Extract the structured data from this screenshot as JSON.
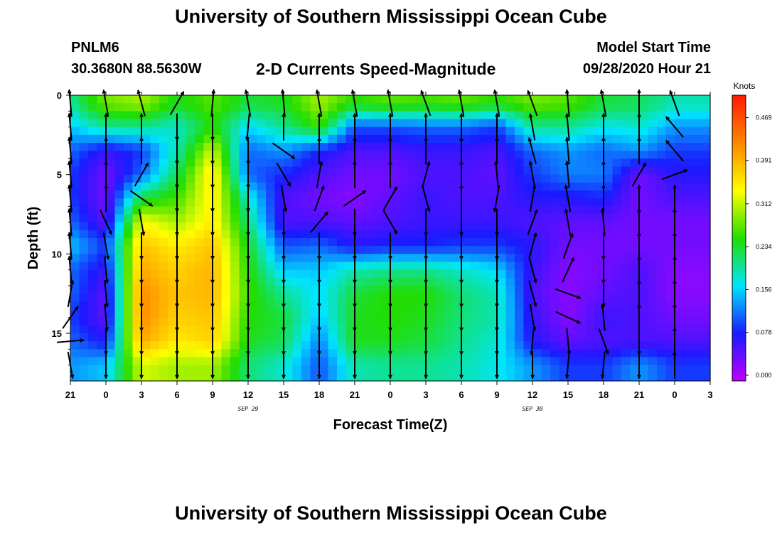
{
  "header": {
    "main_title": "University of Southern Mississippi Ocean Cube",
    "station_id": "PNLM6",
    "station_coords": "30.3680N 88.5630W",
    "subtitle": "2-D Currents Speed-Magnitude",
    "model_start_label": "Model Start Time",
    "model_start_value": "09/28/2020 Hour 21"
  },
  "footer": {
    "title": "University of Southern Mississippi Ocean Cube"
  },
  "chart_data": {
    "type": "heatmap",
    "title": "2-D Currents Speed-Magnitude",
    "xlabel": "Forecast Time(Z)",
    "ylabel": "Depth (ft)",
    "x_tick_labels": [
      "21",
      "0",
      "3",
      "6",
      "9",
      "12",
      "15",
      "18",
      "21",
      "0",
      "3",
      "6",
      "9",
      "12",
      "15",
      "18",
      "21",
      "0",
      "3"
    ],
    "date_labels": [
      {
        "text": "SEP 29",
        "tick_index": 5
      },
      {
        "text": "SEP 30",
        "tick_index": 13
      }
    ],
    "y_ticks": [
      0,
      5,
      10,
      15
    ],
    "ylim": [
      0,
      18
    ],
    "y_inverted": true,
    "x_range_hours": [
      0,
      54
    ],
    "colorbar": {
      "title": "Knots",
      "ticks": [
        "0.000",
        "0.078",
        "0.156",
        "0.234",
        "0.312",
        "0.391",
        "0.469"
      ],
      "range": [
        0.0,
        0.52
      ],
      "colors": [
        "#c000ff",
        "#1a1aff",
        "#00e5ff",
        "#22dd00",
        "#ffff00",
        "#ff8800",
        "#ff1a00"
      ]
    },
    "depths_ft": [
      0.5,
      2,
      3.5,
      5,
      6.5,
      8,
      9.5,
      11,
      12.5,
      14,
      15.5,
      17
    ],
    "speed_columns": [
      {
        "hour": 0,
        "speeds": [
          0.21,
          0.16,
          0.12,
          0.1,
          0.1,
          0.12,
          0.16,
          0.12,
          0.12,
          0.1,
          0.12,
          0.14
        ]
      },
      {
        "hour": 3,
        "speeds": [
          0.29,
          0.21,
          0.07,
          0.04,
          0.04,
          0.05,
          0.1,
          0.07,
          0.05,
          0.05,
          0.08,
          0.16
        ]
      },
      {
        "hour": 6,
        "speeds": [
          0.31,
          0.21,
          0.1,
          0.12,
          0.24,
          0.35,
          0.39,
          0.41,
          0.43,
          0.43,
          0.41,
          0.33
        ]
      },
      {
        "hour": 9,
        "speeds": [
          0.25,
          0.19,
          0.2,
          0.23,
          0.27,
          0.31,
          0.36,
          0.38,
          0.39,
          0.38,
          0.36,
          0.31
        ]
      },
      {
        "hour": 12,
        "speeds": [
          0.28,
          0.26,
          0.33,
          0.37,
          0.36,
          0.36,
          0.39,
          0.4,
          0.4,
          0.39,
          0.38,
          0.31
        ]
      },
      {
        "hour": 15,
        "speeds": [
          0.24,
          0.17,
          0.12,
          0.12,
          0.19,
          0.22,
          0.25,
          0.26,
          0.27,
          0.26,
          0.25,
          0.22
        ]
      },
      {
        "hour": 18,
        "speeds": [
          0.25,
          0.21,
          0.14,
          0.09,
          0.06,
          0.06,
          0.11,
          0.16,
          0.21,
          0.24,
          0.23,
          0.19
        ]
      },
      {
        "hour": 21,
        "speeds": [
          0.31,
          0.27,
          0.09,
          0.06,
          0.04,
          0.06,
          0.12,
          0.16,
          0.17,
          0.16,
          0.13,
          0.11
        ]
      },
      {
        "hour": 24,
        "speeds": [
          0.26,
          0.11,
          0.06,
          0.04,
          0.03,
          0.05,
          0.08,
          0.2,
          0.24,
          0.25,
          0.25,
          0.2
        ]
      },
      {
        "hour": 27,
        "speeds": [
          0.28,
          0.11,
          0.06,
          0.04,
          0.05,
          0.06,
          0.09,
          0.21,
          0.26,
          0.26,
          0.25,
          0.21
        ]
      },
      {
        "hour": 30,
        "speeds": [
          0.27,
          0.12,
          0.07,
          0.06,
          0.07,
          0.07,
          0.09,
          0.21,
          0.26,
          0.25,
          0.24,
          0.21
        ]
      },
      {
        "hour": 33,
        "speeds": [
          0.28,
          0.12,
          0.07,
          0.06,
          0.06,
          0.07,
          0.1,
          0.19,
          0.22,
          0.22,
          0.21,
          0.2
        ]
      },
      {
        "hour": 36,
        "speeds": [
          0.26,
          0.1,
          0.06,
          0.05,
          0.06,
          0.07,
          0.1,
          0.17,
          0.2,
          0.2,
          0.19,
          0.18
        ]
      },
      {
        "hour": 39,
        "speeds": [
          0.29,
          0.21,
          0.12,
          0.1,
          0.08,
          0.06,
          0.08,
          0.07,
          0.06,
          0.07,
          0.08,
          0.14
        ]
      },
      {
        "hour": 42,
        "speeds": [
          0.28,
          0.21,
          0.14,
          0.13,
          0.08,
          0.05,
          0.04,
          0.03,
          0.03,
          0.03,
          0.05,
          0.1
        ]
      },
      {
        "hour": 45,
        "speeds": [
          0.24,
          0.18,
          0.12,
          0.13,
          0.09,
          0.05,
          0.04,
          0.04,
          0.05,
          0.07,
          0.06,
          0.1
        ]
      },
      {
        "hour": 48,
        "speeds": [
          0.23,
          0.19,
          0.14,
          0.04,
          0.04,
          0.04,
          0.04,
          0.06,
          0.06,
          0.06,
          0.06,
          0.14
        ]
      },
      {
        "hour": 51,
        "speeds": [
          0.2,
          0.14,
          0.1,
          0.08,
          0.06,
          0.04,
          0.04,
          0.03,
          0.03,
          0.04,
          0.06,
          0.1
        ]
      },
      {
        "hour": 54,
        "speeds": [
          0.2,
          0.14,
          0.1,
          0.08,
          0.06,
          0.04,
          0.04,
          0.03,
          0.03,
          0.04,
          0.06,
          0.1
        ]
      }
    ],
    "vector_columns": [
      {
        "hour": 0,
        "angles_deg": [
          95,
          95,
          95,
          95,
          95,
          95,
          95,
          95,
          80,
          55,
          5,
          -80
        ]
      },
      {
        "hour": 3,
        "angles_deg": [
          100,
          90,
          90,
          90,
          90,
          -65,
          -80,
          -85,
          -85,
          -85,
          -90,
          -90
        ]
      },
      {
        "hour": 6,
        "angles_deg": [
          105,
          90,
          90,
          60,
          -35,
          -80,
          -90,
          -90,
          -90,
          -90,
          -90,
          -90
        ]
      },
      {
        "hour": 9,
        "angles_deg": [
          60,
          -90,
          -90,
          -90,
          -90,
          -90,
          -90,
          -90,
          -90,
          -90,
          -90,
          -90
        ]
      },
      {
        "hour": 12,
        "angles_deg": [
          85,
          -90,
          -90,
          -90,
          -90,
          -90,
          -90,
          -90,
          -90,
          -90,
          -90,
          -90
        ]
      },
      {
        "hour": 15,
        "angles_deg": [
          100,
          -95,
          -90,
          -90,
          -90,
          -90,
          -90,
          -90,
          -90,
          -90,
          -90,
          -90
        ]
      },
      {
        "hour": 18,
        "angles_deg": [
          95,
          90,
          -35,
          -60,
          -80,
          -90,
          -90,
          -90,
          -90,
          -90,
          -90,
          -90
        ]
      },
      {
        "hour": 21,
        "angles_deg": [
          100,
          90,
          90,
          80,
          70,
          50,
          -90,
          -90,
          -90,
          -90,
          -90,
          -90
        ]
      },
      {
        "hour": 24,
        "angles_deg": [
          100,
          90,
          90,
          90,
          35,
          -90,
          -90,
          -90,
          -90,
          -90,
          -90,
          -90
        ]
      },
      {
        "hour": 27,
        "angles_deg": [
          100,
          90,
          90,
          90,
          60,
          -60,
          -90,
          -90,
          -90,
          -90,
          -90,
          -90
        ]
      },
      {
        "hour": 30,
        "angles_deg": [
          110,
          90,
          90,
          75,
          -75,
          -90,
          -90,
          -90,
          -90,
          -90,
          -90,
          -90
        ]
      },
      {
        "hour": 33,
        "angles_deg": [
          100,
          90,
          90,
          90,
          90,
          -90,
          -90,
          -90,
          -90,
          -90,
          -90,
          -90
        ]
      },
      {
        "hour": 36,
        "angles_deg": [
          100,
          90,
          90,
          95,
          -100,
          -90,
          -90,
          -90,
          -90,
          -90,
          -90,
          -90
        ]
      },
      {
        "hour": 39,
        "angles_deg": [
          110,
          100,
          105,
          100,
          80,
          70,
          75,
          -75,
          -75,
          -80,
          -95,
          -90
        ]
      },
      {
        "hour": 42,
        "angles_deg": [
          95,
          95,
          95,
          95,
          100,
          100,
          70,
          65,
          -20,
          -25,
          -85,
          -95
        ]
      },
      {
        "hour": 45,
        "angles_deg": [
          100,
          90,
          90,
          90,
          90,
          95,
          -90,
          -90,
          -90,
          95,
          -70,
          -95
        ]
      },
      {
        "hour": 48,
        "angles_deg": [
          90,
          90,
          90,
          60,
          90,
          90,
          90,
          90,
          90,
          90,
          -90,
          -90
        ]
      },
      {
        "hour": 51,
        "angles_deg": [
          110,
          130,
          130,
          20,
          90,
          90,
          90,
          90,
          90,
          90,
          90,
          90
        ]
      }
    ]
  }
}
